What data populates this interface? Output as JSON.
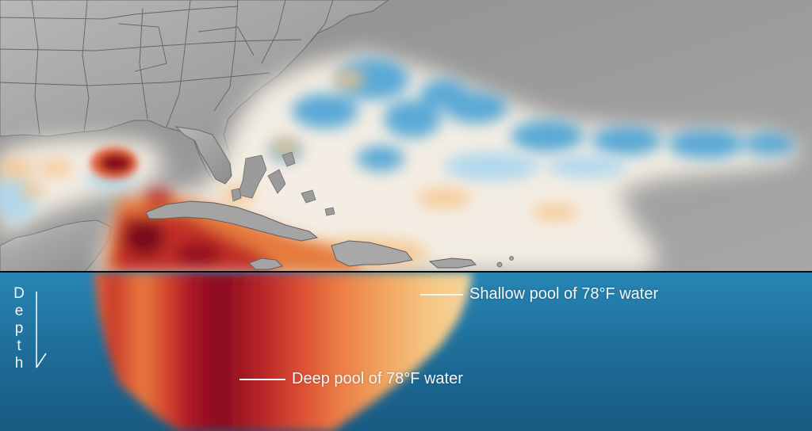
{
  "map": {
    "legend_colors": {
      "ocean_surface_warm": "#c62a27",
      "ocean_surface_hot": "#7e0a1e",
      "ocean_surface_neutral": "#f6efe2",
      "ocean_surface_cool": "#3d9fd4",
      "land": "#9d9d9d",
      "subsurface_water": "#1c5f86"
    }
  },
  "annotations": {
    "shallow": "Shallow pool of 78°F water",
    "deep": "Deep pool of 78°F water"
  },
  "depth_axis": {
    "letters": [
      "D",
      "e",
      "p",
      "t",
      "h"
    ]
  }
}
